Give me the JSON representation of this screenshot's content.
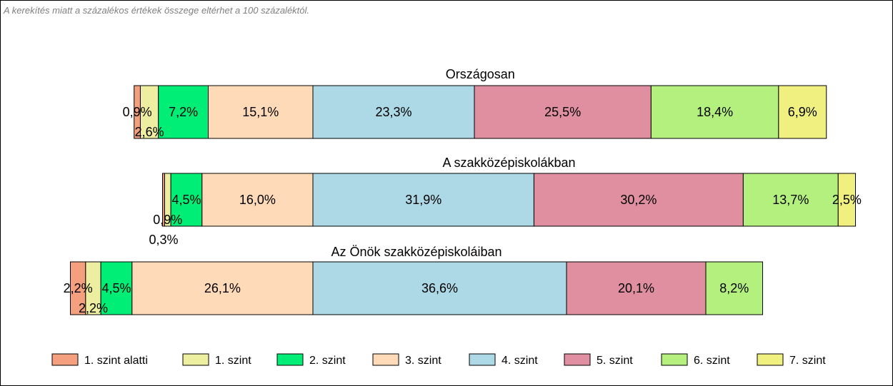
{
  "note": "A kerekítés miatt a  százalékos értékek összege eltérhet a 100 százaléktól.",
  "chart_data": {
    "type": "bar",
    "orientation": "horizontal",
    "stacked": true,
    "categories": [
      "1. szint alatti",
      "1. szint",
      "2. szint",
      "3. szint",
      "4. szint",
      "5. szint",
      "6. szint",
      "7. szint"
    ],
    "colors": [
      "#f4a07e",
      "#eeeea0",
      "#00ee76",
      "#ffdab8",
      "#add8e6",
      "#df8fa0",
      "#b4f07e",
      "#f0f080"
    ],
    "bars": [
      {
        "title": "Országosan",
        "values": [
          0.9,
          2.6,
          7.2,
          15.1,
          23.3,
          25.5,
          18.4,
          6.9
        ],
        "labels": [
          "0,9%",
          "2,6%",
          "7,2%",
          "15,1%",
          "23,3%",
          "25,5%",
          "18,4%",
          "6,9%"
        ]
      },
      {
        "title": "A szakközépiskolákban",
        "values": [
          0.3,
          0.9,
          4.5,
          16.0,
          31.9,
          30.2,
          13.7,
          2.5
        ],
        "labels": [
          "0,3%",
          "0,9%",
          "4,5%",
          "16,0%",
          "31,9%",
          "30,2%",
          "13,7%",
          "2,5%"
        ]
      },
      {
        "title": "Az Önök szakközépiskoláiban",
        "values": [
          2.2,
          2.2,
          4.5,
          26.1,
          36.6,
          20.1,
          8.2,
          0
        ],
        "labels": [
          "2,2%",
          "2,2%",
          "4,5%",
          "26,1%",
          "36,6%",
          "20,1%",
          "8,2%",
          ""
        ]
      }
    ],
    "legend_position": "bottom"
  }
}
